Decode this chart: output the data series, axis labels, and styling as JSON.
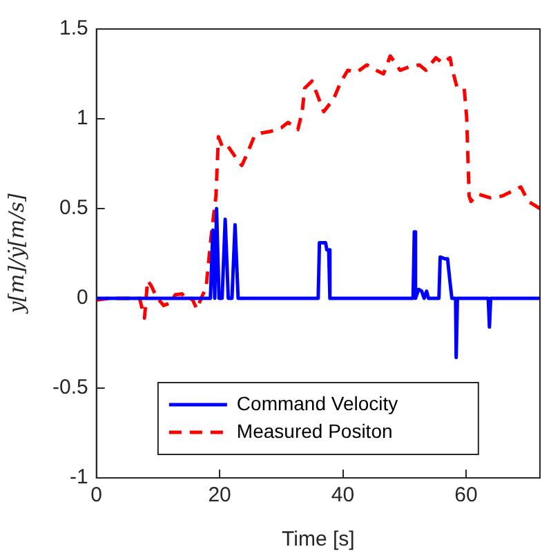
{
  "chart_data": {
    "type": "line",
    "xlabel": "Time [s]",
    "ylabel": "y[m]/ẏ[m/s]",
    "xlim": [
      0,
      72
    ],
    "xticks": [
      0,
      20,
      40,
      60
    ],
    "ylim": [
      -1,
      1.5
    ],
    "yticks": [
      -1,
      -0.5,
      0,
      0.5,
      1,
      1.5
    ],
    "grid": false,
    "legend": "bottom",
    "marker": "none",
    "series": [
      {
        "name": "Command Velocity",
        "color": "#0000ff",
        "line_style": "solid",
        "x": [
          0,
          18.5,
          18.9,
          19.2,
          19.5,
          19.9,
          20.4,
          20.9,
          21.4,
          22,
          22.5,
          23,
          36,
          36.2,
          37.2,
          37.4,
          37.7,
          37.9,
          51.4,
          51.6,
          51.8,
          52.3,
          52.8,
          53.2,
          53.6,
          53.9,
          55.6,
          55.8,
          56.6,
          57,
          57.4,
          57.7,
          58.3,
          58.4,
          58.6,
          63.6,
          63.8,
          64,
          72
        ],
        "values": [
          0,
          0,
          0.38,
          0,
          0.5,
          0,
          0,
          0.44,
          0,
          0,
          0.41,
          0,
          0,
          0.31,
          0.31,
          0.27,
          0.27,
          0,
          0,
          0.37,
          0,
          0.05,
          0.04,
          0,
          0.04,
          0,
          0,
          0.23,
          0.22,
          0.22,
          0.09,
          0,
          0,
          -0.33,
          0,
          0,
          -0.16,
          0,
          0
        ]
      },
      {
        "name": "Measured Positon",
        "color": "#ff0000",
        "line_style": "dashed",
        "x": [
          0,
          2,
          5,
          7,
          7.8,
          8.3,
          8.9,
          9.7,
          10.9,
          12,
          12.8,
          13.9,
          14.7,
          15.5,
          16.3,
          17,
          17.8,
          18.6,
          19.4,
          19.8,
          20.5,
          21.3,
          22.9,
          23.6,
          24.4,
          25.6,
          26.7,
          28.3,
          30,
          31.1,
          32.7,
          33.4,
          33.8,
          35,
          36.9,
          38.5,
          39.6,
          40.8,
          42.3,
          43.9,
          45.4,
          46.6,
          47.7,
          49.3,
          50.8,
          52.4,
          53.5,
          55.1,
          56.2,
          57.4,
          57.8,
          58.5,
          59.7,
          60.1,
          60.5,
          60.8,
          62,
          63.9,
          65.9,
          68.9,
          70.1,
          72
        ],
        "values": [
          -0.01,
          0,
          0,
          0,
          -0.11,
          0.1,
          0.07,
          0.01,
          -0.04,
          -0.025,
          0.02,
          0.025,
          -0.01,
          0,
          -0.06,
          0,
          0.06,
          0.34,
          0.57,
          0.9,
          0.84,
          0.85,
          0.77,
          0.74,
          0.8,
          0.9,
          0.92,
          0.93,
          0.95,
          0.98,
          0.94,
          1.04,
          1.17,
          1.21,
          1.04,
          1.11,
          1.2,
          1.27,
          1.26,
          1.3,
          1.27,
          1.25,
          1.35,
          1.27,
          1.29,
          1.3,
          1.27,
          1.34,
          1.31,
          1.34,
          1.27,
          1.18,
          1.17,
          1.01,
          0.57,
          0.54,
          0.58,
          0.56,
          0.57,
          0.62,
          0.54,
          0.5
        ]
      }
    ]
  }
}
